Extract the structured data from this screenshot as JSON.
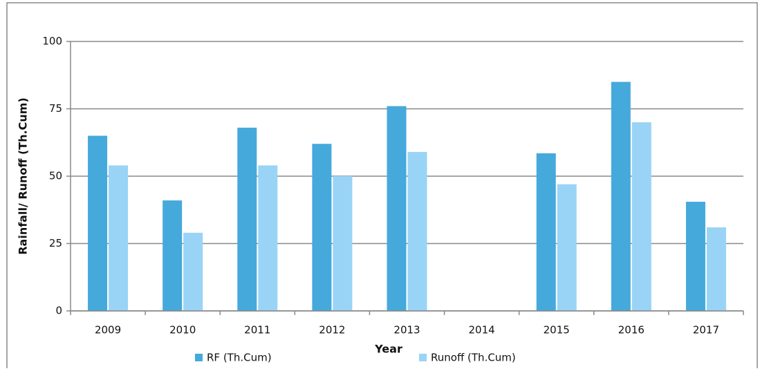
{
  "chart_data": {
    "type": "bar",
    "categories": [
      "2009",
      "2010",
      "2011",
      "2012",
      "2013",
      "2014",
      "2015",
      "2016",
      "2017"
    ],
    "series": [
      {
        "name": "RF (Th.Cum)",
        "color": "#45a9dc",
        "values": [
          65,
          41,
          68,
          62,
          76,
          null,
          58.5,
          85,
          40.5
        ]
      },
      {
        "name": "Runoff  (Th.Cum)",
        "color": "#99d4f6",
        "values": [
          54,
          29,
          54,
          50,
          59,
          null,
          47,
          70,
          31
        ]
      }
    ],
    "xlabel": "Year",
    "ylabel": "Rainfall/ Runoff (Th.Cum)",
    "ylim": [
      0,
      100
    ],
    "yticks": [
      0,
      25,
      50,
      75,
      100
    ],
    "grid": true,
    "legend": "bottom"
  }
}
